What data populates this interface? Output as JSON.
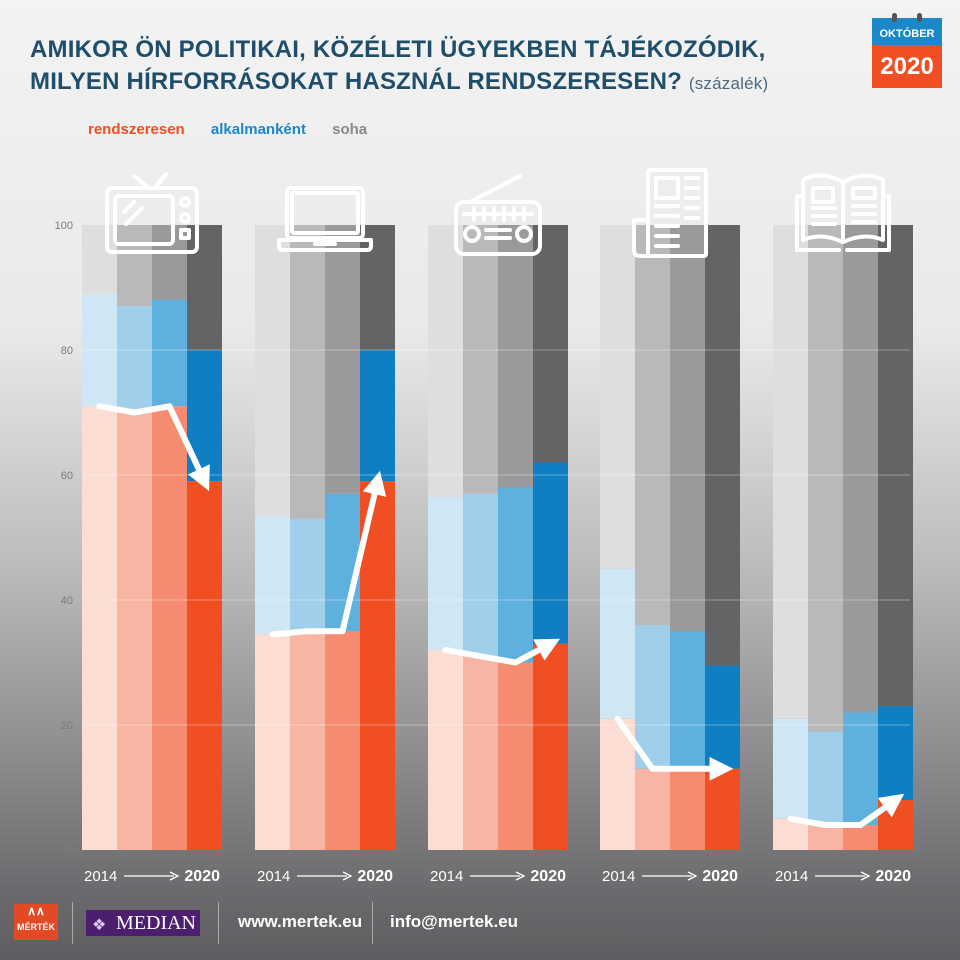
{
  "title_line1": "AMIKOR ÖN POLITIKAI, KÖZÉLETI ÜGYEKBEN TÁJÉKOZÓDIK,",
  "title_line2": "MILYEN HÍRFORRÁSOKAT HASZNÁL RENDSZERESEN?",
  "title_unit": "(százalék)",
  "calendar": {
    "month": "OKTÓBER",
    "year": "2020"
  },
  "colors": {
    "accent_red": "#f04e23",
    "accent_blue": "#1a88c9",
    "title": "#1f4e6b",
    "gray_text": "#8a8a8a"
  },
  "footer": {
    "mertek_logo": "MÉRTÉK",
    "median_logo": "MEDIAN",
    "website": "www.mertek.eu",
    "email": "info@mertek.eu"
  },
  "chart_data": {
    "type": "bar",
    "stacked": true,
    "ylim": [
      0,
      100
    ],
    "yticks": [
      0,
      20,
      40,
      60,
      80,
      100
    ],
    "grid": true,
    "legend_position": "top-left",
    "legend": [
      {
        "name": "rendszeresen",
        "color": "#f04e23"
      },
      {
        "name": "alkalmanként",
        "color": "#1a88c9"
      },
      {
        "name": "soha",
        "color": "#8a8a8a"
      }
    ],
    "period_label_start": "2014",
    "period_label_end": "2020",
    "groups": [
      {
        "icon": "tv-icon",
        "rendszeresen": [
          71,
          70,
          71,
          59
        ],
        "alkalmankent": [
          18,
          17,
          17,
          21
        ]
      },
      {
        "icon": "laptop-icon",
        "rendszeresen": [
          34.5,
          35,
          35,
          59
        ],
        "alkalmankent": [
          19,
          18,
          22,
          21
        ]
      },
      {
        "icon": "radio-icon",
        "rendszeresen": [
          32,
          31,
          30,
          33
        ],
        "alkalmankent": [
          24.5,
          26,
          28,
          29
        ]
      },
      {
        "icon": "newspaper-icon",
        "rendszeresen": [
          21,
          13,
          13,
          13
        ],
        "alkalmankent": [
          24,
          23,
          22,
          16.5
        ]
      },
      {
        "icon": "magazine-icon",
        "rendszeresen": [
          5,
          4,
          4,
          8
        ],
        "alkalmankent": [
          16,
          15,
          18,
          15
        ]
      }
    ]
  }
}
